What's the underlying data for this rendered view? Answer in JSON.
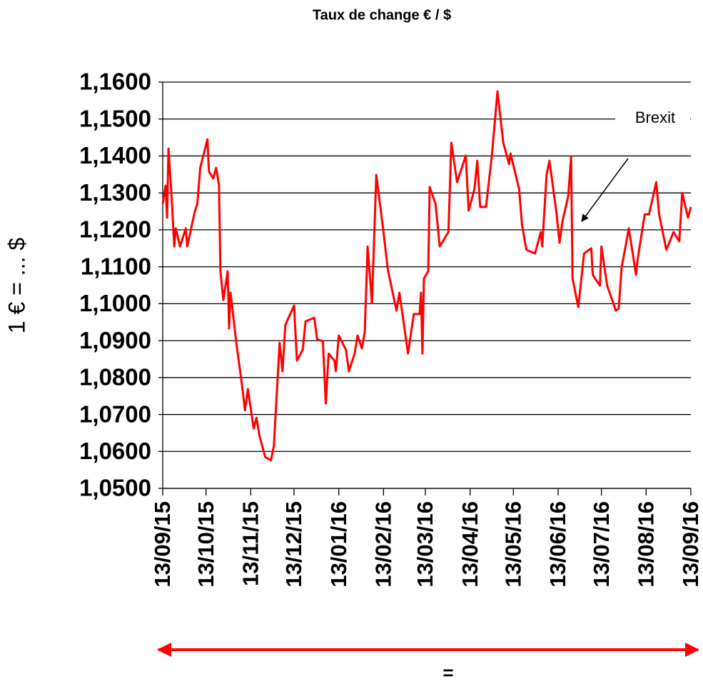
{
  "chart_data": {
    "type": "line",
    "title": "Taux de change € / $",
    "y_label": "1 € = ... $",
    "annotation": "Brexit",
    "bottom_label": "=",
    "color": "#ff0000",
    "grid": true,
    "xlim": [
      "2015-09-13",
      "2016-09-13"
    ],
    "xticks": [
      {
        "value": "2015-09-13",
        "label": "13/09/15"
      },
      {
        "value": "2015-10-13",
        "label": "13/10/15"
      },
      {
        "value": "2015-11-13",
        "label": "13/11/15"
      },
      {
        "value": "2015-12-13",
        "label": "13/12/15"
      },
      {
        "value": "2016-01-13",
        "label": "13/01/16"
      },
      {
        "value": "2016-02-13",
        "label": "13/02/16"
      },
      {
        "value": "2016-03-13",
        "label": "13/03/16"
      },
      {
        "value": "2016-04-13",
        "label": "13/04/16"
      },
      {
        "value": "2016-05-13",
        "label": "13/05/16"
      },
      {
        "value": "2016-06-13",
        "label": "13/06/16"
      },
      {
        "value": "2016-07-13",
        "label": "13/07/16"
      },
      {
        "value": "2016-08-13",
        "label": "13/08/16"
      },
      {
        "value": "2016-09-13",
        "label": "13/09/16"
      }
    ],
    "ylim": [
      1.05,
      1.16
    ],
    "yticks": [
      {
        "value": 1.05,
        "label": "1,0500"
      },
      {
        "value": 1.06,
        "label": "1,0600"
      },
      {
        "value": 1.07,
        "label": "1,0700"
      },
      {
        "value": 1.08,
        "label": "1,0800"
      },
      {
        "value": 1.09,
        "label": "1,0900"
      },
      {
        "value": 1.1,
        "label": "1,1000"
      },
      {
        "value": 1.11,
        "label": "1,1100"
      },
      {
        "value": 1.12,
        "label": "1,1200"
      },
      {
        "value": 1.13,
        "label": "1,1300"
      },
      {
        "value": 1.14,
        "label": "1,1400"
      },
      {
        "value": 1.15,
        "label": "1,1500"
      },
      {
        "value": 1.16,
        "label": "1,1600"
      }
    ],
    "x": [
      "2015-09-13",
      "2015-09-15",
      "2015-09-16",
      "2015-09-17",
      "2015-09-19",
      "2015-09-21",
      "2015-09-22",
      "2015-09-25",
      "2015-09-29",
      "2015-09-30",
      "2015-10-05",
      "2015-10-07",
      "2015-10-09",
      "2015-10-14",
      "2015-10-15",
      "2015-10-18",
      "2015-10-20",
      "2015-10-22",
      "2015-10-23",
      "2015-10-25",
      "2015-10-28",
      "2015-10-29",
      "2015-10-30",
      "2015-11-03",
      "2015-11-07",
      "2015-11-09",
      "2015-11-11",
      "2015-11-15",
      "2015-11-17",
      "2015-11-19",
      "2015-11-23",
      "2015-11-27",
      "2015-11-29",
      "2015-12-03",
      "2015-12-05",
      "2015-12-07",
      "2015-12-13",
      "2015-12-15",
      "2015-12-19",
      "2015-12-21",
      "2015-12-27",
      "2015-12-29",
      "2016-01-02",
      "2016-01-04",
      "2016-01-06",
      "2016-01-10",
      "2016-01-11",
      "2016-01-13",
      "2016-01-18",
      "2016-01-20",
      "2016-01-24",
      "2016-01-26",
      "2016-01-29",
      "2016-01-31",
      "2016-02-02",
      "2016-02-05",
      "2016-02-08",
      "2016-02-13",
      "2016-02-16",
      "2016-02-22",
      "2016-02-24",
      "2016-03-01",
      "2016-03-05",
      "2016-03-09",
      "2016-03-10",
      "2016-03-11",
      "2016-03-12",
      "2016-03-15",
      "2016-03-16",
      "2016-03-20",
      "2016-03-23",
      "2016-03-29",
      "2016-03-31",
      "2016-04-04",
      "2016-04-10",
      "2016-04-12",
      "2016-04-16",
      "2016-04-18",
      "2016-04-20",
      "2016-04-24",
      "2016-04-28",
      "2016-05-02",
      "2016-05-06",
      "2016-05-10",
      "2016-05-11",
      "2016-05-17",
      "2016-05-19",
      "2016-05-22",
      "2016-05-28",
      "2016-06-01",
      "2016-06-02",
      "2016-06-05",
      "2016-06-07",
      "2016-06-12",
      "2016-06-14",
      "2016-06-16",
      "2016-06-20",
      "2016-06-22",
      "2016-06-23",
      "2016-06-27",
      "2016-07-01",
      "2016-07-06",
      "2016-07-07",
      "2016-07-12",
      "2016-07-13",
      "2016-07-17",
      "2016-07-23",
      "2016-07-25",
      "2016-07-27",
      "2016-08-01",
      "2016-08-06",
      "2016-08-07",
      "2016-08-12",
      "2016-08-15",
      "2016-08-20",
      "2016-08-22",
      "2016-08-27",
      "2016-09-01",
      "2016-09-05",
      "2016-09-07",
      "2016-09-11",
      "2016-09-13"
    ],
    "values": [
      1.1271,
      1.132,
      1.1233,
      1.142,
      1.13,
      1.1155,
      1.1204,
      1.1155,
      1.1204,
      1.1155,
      1.1246,
      1.1271,
      1.1368,
      1.1445,
      1.1358,
      1.1339,
      1.1368,
      1.132,
      1.1088,
      1.101,
      1.1088,
      1.0933,
      1.103,
      1.0894,
      1.0778,
      1.0711,
      1.0769,
      1.0662,
      1.0691,
      1.0643,
      1.0585,
      1.0576,
      1.0614,
      1.0894,
      1.0817,
      1.0943,
      1.0995,
      1.0846,
      1.0875,
      1.0952,
      1.0962,
      1.0904,
      1.0898,
      1.073,
      1.0865,
      1.0846,
      1.0817,
      1.0914,
      1.0875,
      1.0817,
      1.0865,
      1.0914,
      1.0879,
      1.0923,
      1.1155,
      1.1001,
      1.1349,
      1.1194,
      1.1092,
      1.0981,
      1.103,
      1.0865,
      1.0972,
      1.0972,
      1.103,
      1.0865,
      1.1068,
      1.1088,
      1.1316,
      1.1271,
      1.1155,
      1.1194,
      1.1436,
      1.1329,
      1.1401,
      1.1252,
      1.131,
      1.1387,
      1.1262,
      1.1262,
      1.1397,
      1.1575,
      1.1436,
      1.1378,
      1.1407,
      1.131,
      1.1213,
      1.1146,
      1.1136,
      1.1194,
      1.1155,
      1.1349,
      1.1387,
      1.1242,
      1.1165,
      1.1223,
      1.1291,
      1.1397,
      1.1068,
      1.0991,
      1.1136,
      1.115,
      1.1078,
      1.1049,
      1.1155,
      1.1049,
      1.0981,
      1.0987,
      1.1097,
      1.1204,
      1.1078,
      1.1117,
      1.1242,
      1.1242,
      1.1329,
      1.1242,
      1.1146,
      1.1194,
      1.1169,
      1.13,
      1.1233,
      1.1262
    ]
  }
}
